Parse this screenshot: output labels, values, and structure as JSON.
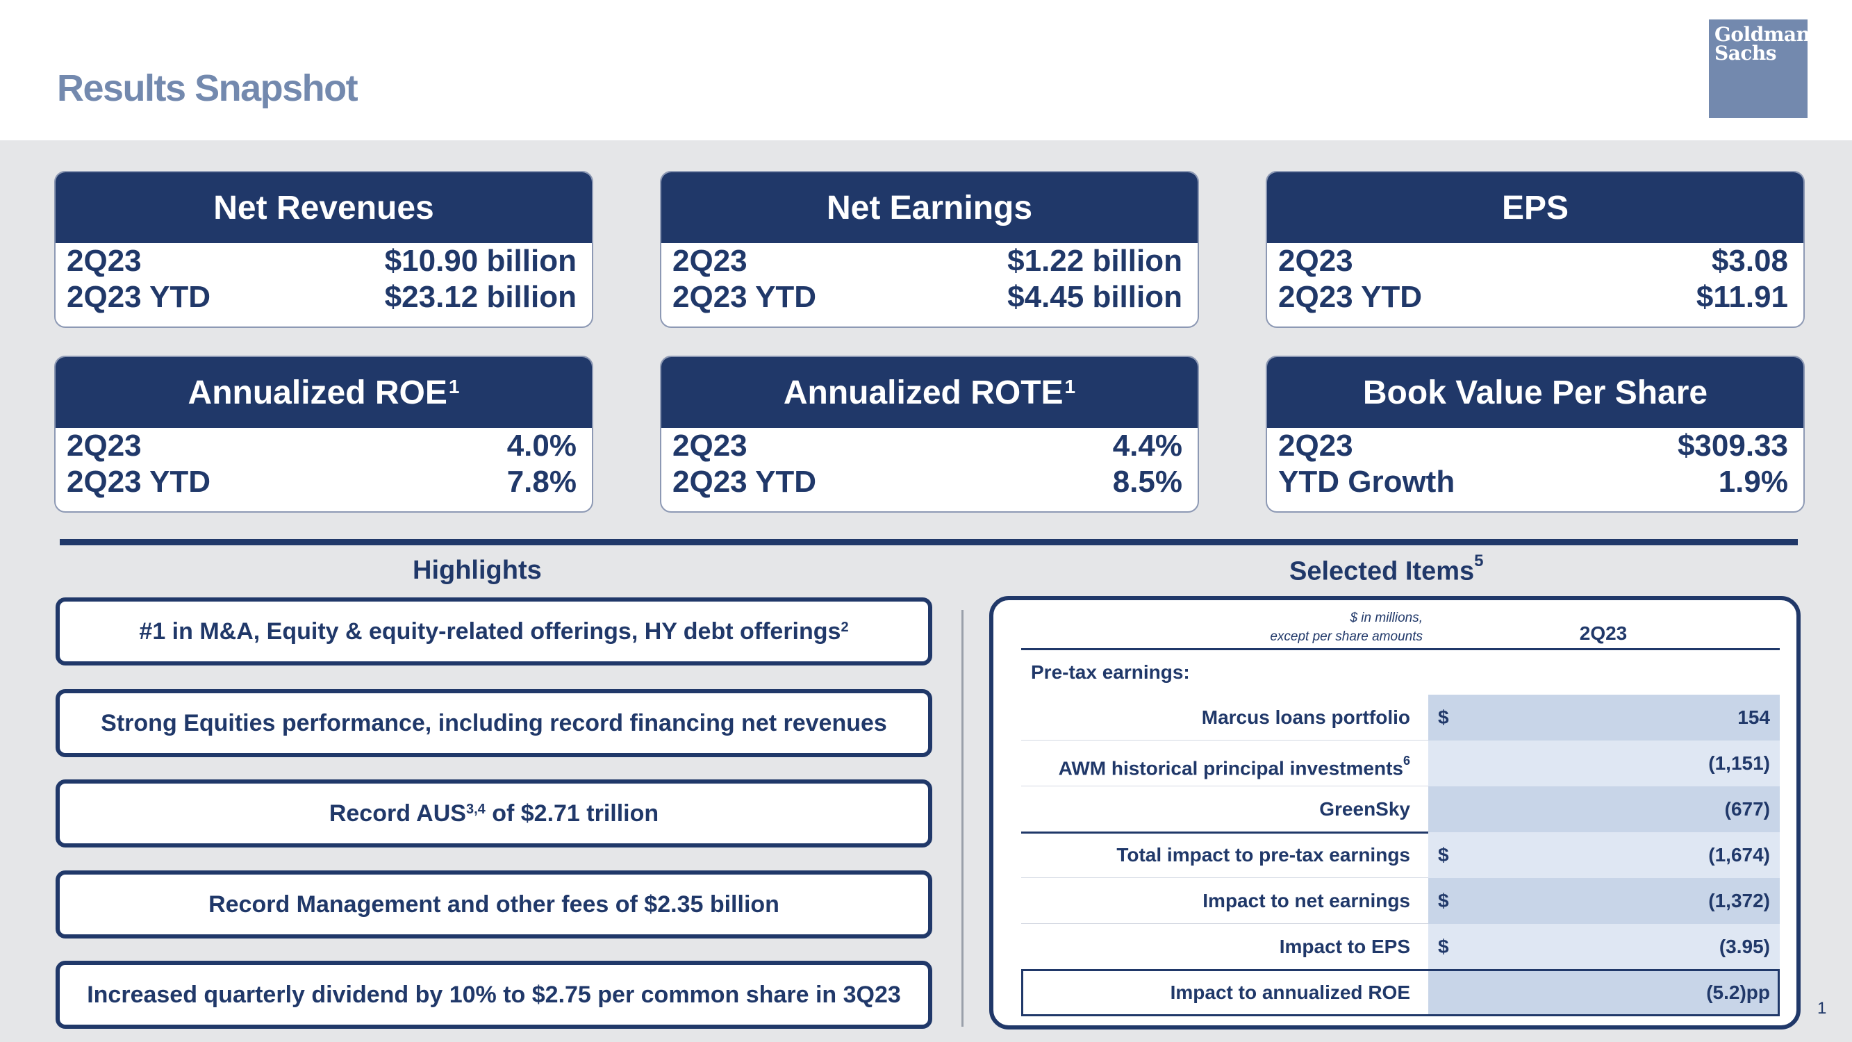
{
  "title": "Results Snapshot",
  "logo": {
    "line1": "Goldman",
    "line2": "Sachs"
  },
  "cards": [
    {
      "title": "Net Revenues",
      "sup": "",
      "rows": [
        {
          "label": "2Q23",
          "value": "$10.90 billion"
        },
        {
          "label": "2Q23 YTD",
          "value": "$23.12 billion"
        }
      ]
    },
    {
      "title": "Net Earnings",
      "sup": "",
      "rows": [
        {
          "label": "2Q23",
          "value": "$1.22 billion"
        },
        {
          "label": "2Q23 YTD",
          "value": "$4.45 billion"
        }
      ]
    },
    {
      "title": "EPS",
      "sup": "",
      "rows": [
        {
          "label": "2Q23",
          "value": "$3.08"
        },
        {
          "label": "2Q23 YTD",
          "value": "$11.91"
        }
      ]
    },
    {
      "title": "Annualized ROE",
      "sup": "1",
      "rows": [
        {
          "label": "2Q23",
          "value": "4.0%"
        },
        {
          "label": "2Q23 YTD",
          "value": "7.8%"
        }
      ]
    },
    {
      "title": "Annualized ROTE",
      "sup": "1",
      "rows": [
        {
          "label": "2Q23",
          "value": "4.4%"
        },
        {
          "label": "2Q23 YTD",
          "value": "8.5%"
        }
      ]
    },
    {
      "title": "Book Value Per Share",
      "sup": "",
      "rows": [
        {
          "label": "2Q23",
          "value": "$309.33"
        },
        {
          "label": "YTD Growth",
          "value": "1.9%"
        }
      ]
    }
  ],
  "highlights": {
    "title": "Highlights",
    "items": [
      {
        "text": "#1 in M&A, Equity & equity-related offerings, HY debt offerings",
        "sup": "2",
        "after": ""
      },
      {
        "text": "Strong Equities performance, including record financing net revenues",
        "sup": "",
        "after": ""
      },
      {
        "text": "Record AUS",
        "sup": "3,4",
        "after": " of $2.71 trillion"
      },
      {
        "text": "Record Management and other fees of $2.35 billion",
        "sup": "",
        "after": ""
      },
      {
        "text": "Increased quarterly dividend by 10% to $2.75 per common share in 3Q23",
        "sup": "",
        "after": ""
      }
    ]
  },
  "selected": {
    "title": "Selected Items",
    "title_sup": "5",
    "note_line1": "$ in millions,",
    "note_line2": "except per share amounts",
    "column": "2Q23",
    "pretax_label": "Pre-tax earnings:",
    "rows": [
      {
        "label": "Marcus loans portfolio",
        "sup": "",
        "dollar": "$",
        "value": "154"
      },
      {
        "label": "AWM historical principal investments",
        "sup": "6",
        "dollar": "",
        "value": "(1,151)"
      },
      {
        "label": "GreenSky",
        "sup": "",
        "dollar": "",
        "value": "(677)"
      },
      {
        "label": "Total impact to pre-tax earnings",
        "sup": "",
        "dollar": "$",
        "value": "(1,674)"
      },
      {
        "label": "Impact to net earnings",
        "sup": "",
        "dollar": "$",
        "value": "(1,372)"
      },
      {
        "label": "Impact to EPS",
        "sup": "",
        "dollar": "$",
        "value": "(3.95)"
      },
      {
        "label": "Impact to annualized ROE",
        "sup": "",
        "dollar": "",
        "value": "(5.2)pp"
      }
    ]
  },
  "page_number": "1"
}
